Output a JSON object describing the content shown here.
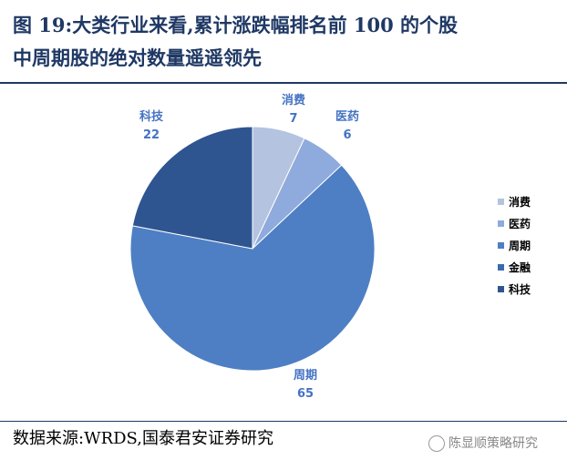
{
  "header": {
    "title_line1": "图 19:大类行业来看,累计涨跌幅排名前 100 的个股",
    "title_line2": "中周期股的绝对数量遥遥领先"
  },
  "footer": {
    "source": "数据来源:WRDS,国泰君安证券研究",
    "watermark": "陈显顺策略研究"
  },
  "chart_data": {
    "type": "pie",
    "slices": [
      {
        "name": "消费",
        "value": 7,
        "color": "#b4c3e0",
        "label_pos": "top"
      },
      {
        "name": "医药",
        "value": 6,
        "color": "#8faadc",
        "label_pos": "top-right"
      },
      {
        "name": "周期",
        "value": 65,
        "color": "#4e7fc4",
        "label_pos": "bottom"
      },
      {
        "name": "金融",
        "value": 0,
        "color": "#3b6aae",
        "label_pos": "none"
      },
      {
        "name": "科技",
        "value": 22,
        "color": "#2e5590",
        "label_pos": "top-left"
      }
    ],
    "legend_position": "right"
  }
}
